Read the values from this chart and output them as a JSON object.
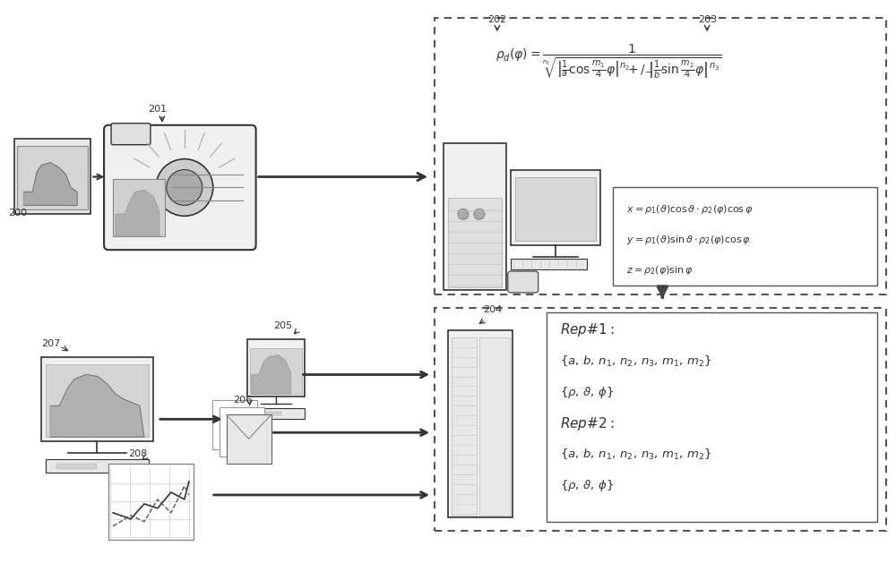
{
  "bg_color": "#ffffff",
  "figure_size": [
    10.0,
    6.29
  ],
  "dpi": 100,
  "label_200": "200",
  "label_201": "201",
  "label_202": "202",
  "label_203": "203",
  "label_204": "204",
  "label_205": "205",
  "label_206": "206",
  "label_207": "207",
  "label_208": "208",
  "formula_main": "$\\rho_d(\\varphi) = \\dfrac{1}{\\sqrt[n_1]{\\left|\\dfrac{1}{a}\\cos\\dfrac{m_1}{4}\\varphi\\right|^{n_2} +/- \\left|\\dfrac{1}{b}\\sin\\dfrac{m_2}{4}\\varphi\\right|^{n_3}}}$",
  "eq_x": "$x = \\rho_1(\\vartheta)\\cos\\vartheta \\cdot \\rho_2(\\varphi)\\cos\\varphi$",
  "eq_y": "$y = \\rho_1(\\vartheta)\\sin\\vartheta \\cdot \\rho_2(\\varphi)\\cos\\varphi$",
  "eq_z": "$z = \\rho_2(\\varphi)\\sin\\varphi$",
  "rep_text": "Rep#1:\n{a, b, n₁, n₂, n₃, m₁, m₂}\n{ρ, ϑ, φ}\nRep#2:\n{a, b, n₁, n₂, n₃, m₁, m₂}\n{ρ, ϑ, φ}",
  "line_color": "#333333",
  "dash_color": "#555555",
  "box_color": "#444444"
}
